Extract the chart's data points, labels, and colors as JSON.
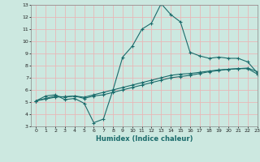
{
  "xlabel": "Humidex (Indice chaleur)",
  "xlim": [
    -0.5,
    23
  ],
  "ylim": [
    3,
    13
  ],
  "yticks": [
    3,
    4,
    5,
    6,
    7,
    8,
    9,
    10,
    11,
    12,
    13
  ],
  "xticks": [
    0,
    1,
    2,
    3,
    4,
    5,
    6,
    7,
    8,
    9,
    10,
    11,
    12,
    13,
    14,
    15,
    16,
    17,
    18,
    19,
    20,
    21,
    22,
    23
  ],
  "bg_color": "#cce8e0",
  "grid_color": "#e8b8b8",
  "line_color": "#1a6b6b",
  "line1_x": [
    0,
    1,
    2,
    3,
    4,
    5,
    6,
    7,
    8,
    9,
    10,
    11,
    12,
    13,
    14,
    15,
    16,
    17,
    18,
    19,
    20,
    21,
    22,
    23
  ],
  "line1_y": [
    5.1,
    5.5,
    5.6,
    5.2,
    5.3,
    4.9,
    3.3,
    3.6,
    6.0,
    8.7,
    9.6,
    11.0,
    11.5,
    13.1,
    12.2,
    11.6,
    9.1,
    8.8,
    8.6,
    8.7,
    8.6,
    8.6,
    8.3,
    7.4
  ],
  "line2_x": [
    0,
    1,
    2,
    3,
    4,
    5,
    6,
    7,
    8,
    9,
    10,
    11,
    12,
    13,
    14,
    15,
    16,
    17,
    18,
    19,
    20,
    21,
    22,
    23
  ],
  "line2_y": [
    5.1,
    5.3,
    5.5,
    5.4,
    5.5,
    5.3,
    5.5,
    5.6,
    5.8,
    6.0,
    6.2,
    6.4,
    6.6,
    6.8,
    7.0,
    7.1,
    7.2,
    7.35,
    7.5,
    7.6,
    7.7,
    7.75,
    7.8,
    7.5
  ],
  "line3_x": [
    0,
    1,
    2,
    3,
    4,
    5,
    6,
    7,
    8,
    9,
    10,
    11,
    12,
    13,
    14,
    15,
    16,
    17,
    18,
    19,
    20,
    21,
    22,
    23
  ],
  "line3_y": [
    5.1,
    5.25,
    5.4,
    5.45,
    5.5,
    5.4,
    5.6,
    5.8,
    6.0,
    6.2,
    6.4,
    6.6,
    6.8,
    7.0,
    7.2,
    7.3,
    7.35,
    7.45,
    7.55,
    7.65,
    7.7,
    7.75,
    7.75,
    7.3
  ]
}
